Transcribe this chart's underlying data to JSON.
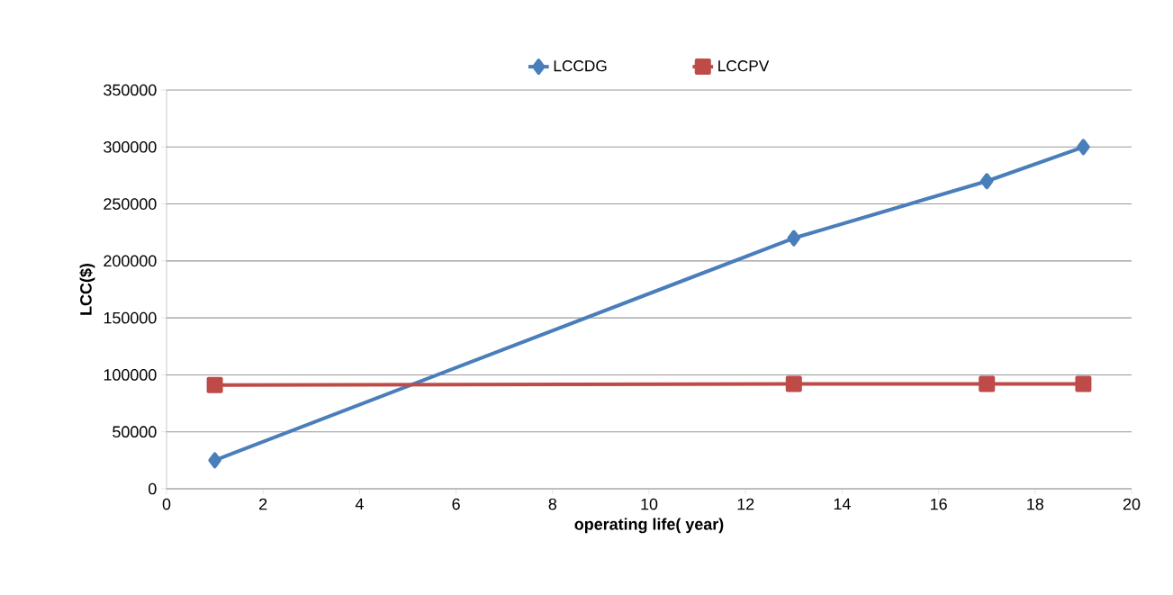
{
  "chart_data": {
    "type": "line",
    "xlabel": "operating life( year)",
    "ylabel": "LCC($)",
    "x": [
      1,
      13,
      17,
      19
    ],
    "series": [
      {
        "name": "LCCDG",
        "color": "#4a7ebb",
        "values": [
          25000,
          220000,
          270000,
          300000
        ],
        "marker": "diamond"
      },
      {
        "name": "LCCPV",
        "color": "#be4b48",
        "values": [
          91000,
          92000,
          92000,
          92000
        ],
        "marker": "square"
      }
    ],
    "xlim": [
      0,
      20
    ],
    "xticks": [
      0,
      2,
      4,
      6,
      8,
      10,
      12,
      14,
      16,
      18,
      20
    ],
    "ylim": [
      0,
      350000
    ],
    "yticks": [
      0,
      50000,
      100000,
      150000,
      200000,
      250000,
      300000,
      350000
    ],
    "grid": "y",
    "legend": "top",
    "line_style": "solid"
  }
}
